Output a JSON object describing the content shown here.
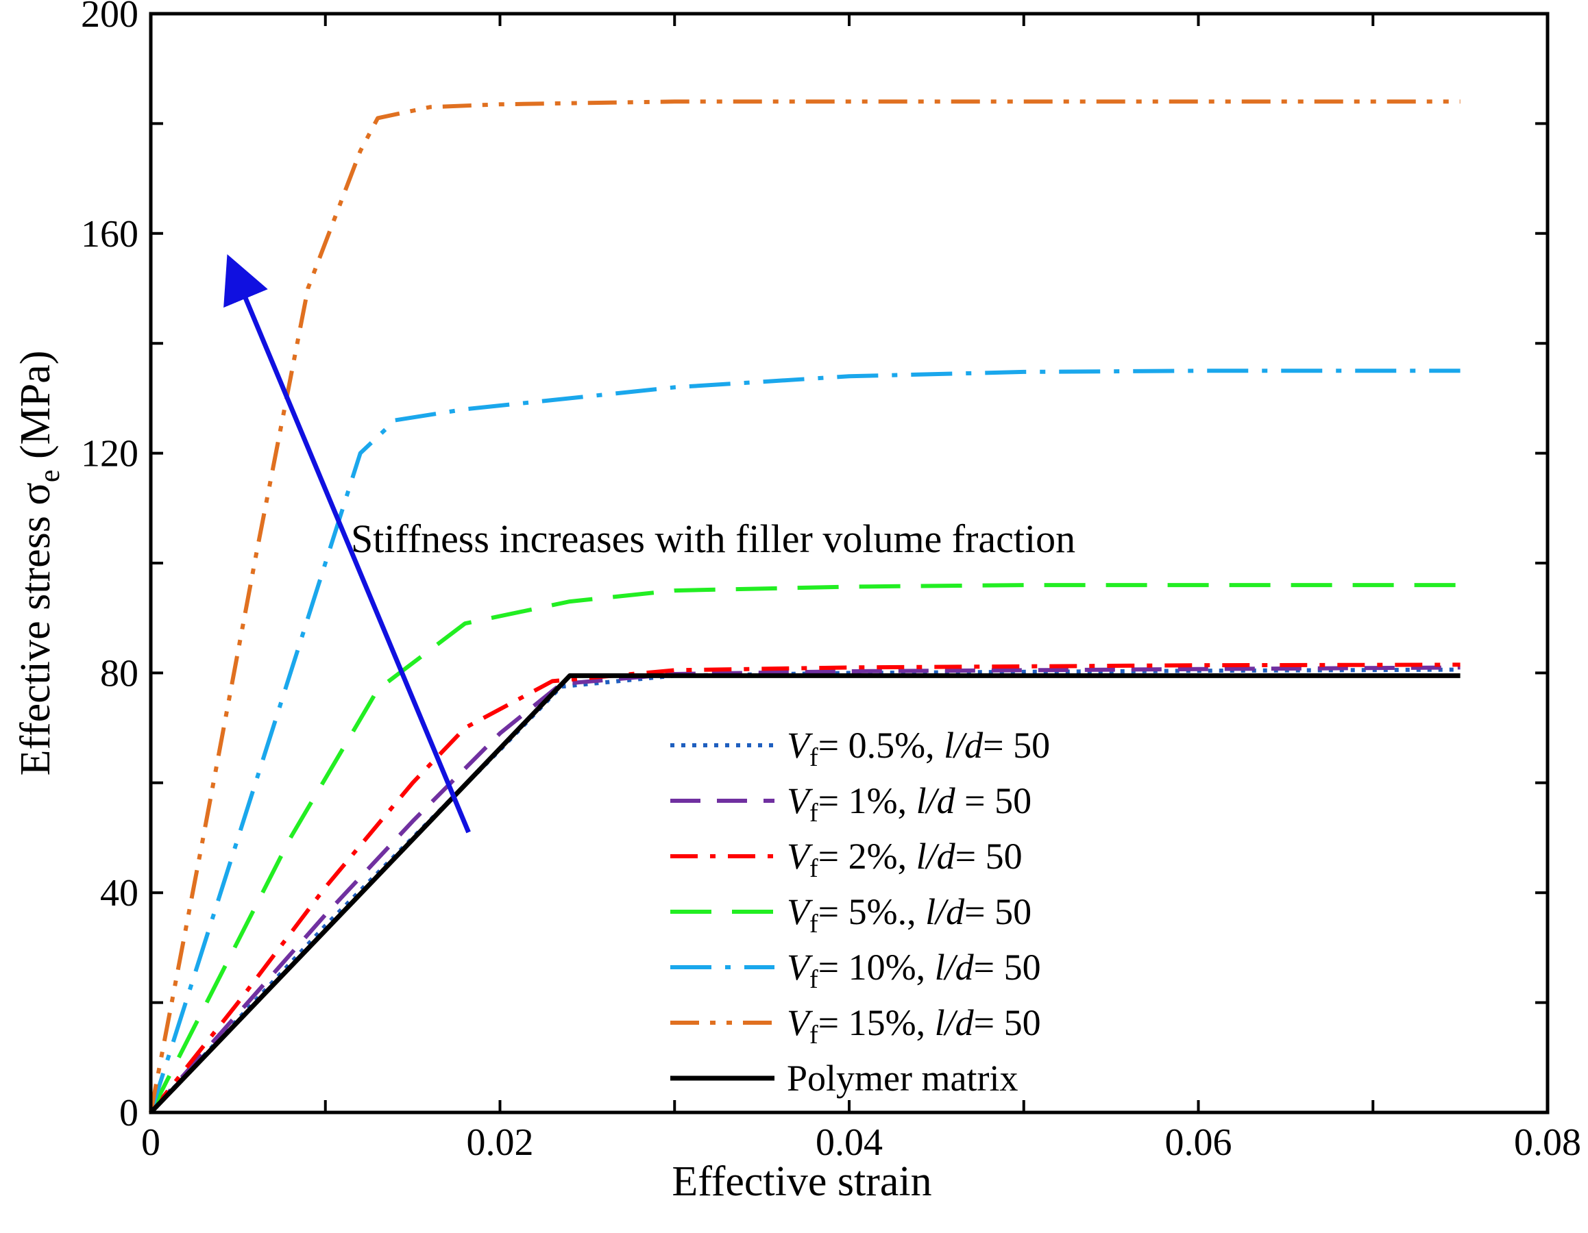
{
  "chart_data": {
    "type": "line",
    "title": "",
    "xlabel": "Effective strain",
    "ylabel_main": "Effective stress σ",
    "ylabel_sub": "e",
    "ylabel_unit": " (MPa)",
    "xlim": [
      0,
      0.08
    ],
    "ylim": [
      0,
      200
    ],
    "xticks": [
      0,
      0.02,
      0.04,
      0.06,
      0.08
    ],
    "xtick_labels": [
      "0",
      "0.02",
      "0.04",
      "0.06",
      "0.08"
    ],
    "yticks": [
      0,
      40,
      80,
      120,
      160,
      200
    ],
    "ytick_labels": [
      "0",
      "40",
      "80",
      "120",
      "160",
      "200"
    ],
    "grid": false,
    "legend_position": "lower-right",
    "annotation": {
      "text": "Stiffness increases with filler volume fraction",
      "arrow_from": [
        0.0182,
        51
      ],
      "arrow_to": [
        0.0048,
        153
      ],
      "color": "#1010e0"
    },
    "series": [
      {
        "name": "Vf= 0.5%, l/d= 50",
        "vf": "0.5%",
        "ld_label": "l/d",
        "ld_sep": "= ",
        "ld_value": "50",
        "color": "#1f5fbf",
        "dash": "dotted",
        "x": [
          0,
          0.005,
          0.01,
          0.015,
          0.02,
          0.0235,
          0.03,
          0.04,
          0.05,
          0.06,
          0.075
        ],
        "y": [
          0,
          17,
          34,
          50,
          66,
          77.5,
          79.5,
          80.0,
          80.2,
          80.4,
          80.6
        ]
      },
      {
        "name": "Vf= 1%, l/d = 50",
        "vf": "1%",
        "ld_label": "l/d",
        "ld_sep": " = ",
        "ld_value": "50",
        "color": "#7030a0",
        "dash": "dashed",
        "x": [
          0,
          0.005,
          0.01,
          0.015,
          0.02,
          0.0235,
          0.03,
          0.04,
          0.05,
          0.06,
          0.075
        ],
        "y": [
          0,
          18,
          36,
          53,
          69,
          78,
          79.8,
          80.3,
          80.5,
          80.7,
          81
        ]
      },
      {
        "name": "Vf= 2%, l/d= 50",
        "vf": "2%",
        "ld_label": "l/d",
        "ld_sep": "= ",
        "ld_value": "50",
        "color": "#ff0000",
        "dash": "dashdot",
        "x": [
          0,
          0.005,
          0.01,
          0.015,
          0.018,
          0.023,
          0.03,
          0.04,
          0.05,
          0.06,
          0.075
        ],
        "y": [
          0,
          20,
          41,
          60,
          70,
          78.5,
          80.5,
          81,
          81.2,
          81.4,
          81.5
        ]
      },
      {
        "name": "Vf= 5%. l/d= 50",
        "vf": "5%.",
        "ld_label": "l/d",
        "ld_sep": "= ",
        "ld_value": "50",
        "color": "#22ee22",
        "dash": "longdash",
        "x": [
          0,
          0.004,
          0.008,
          0.013,
          0.018,
          0.024,
          0.03,
          0.04,
          0.05,
          0.06,
          0.075
        ],
        "y": [
          0,
          25,
          50,
          77,
          89,
          93,
          95,
          95.7,
          96,
          96,
          96
        ]
      },
      {
        "name": "Vf= 10%, l/d= 50",
        "vf": "10%",
        "ld_label": "l/d",
        "ld_sep": "= ",
        "ld_value": "50",
        "color": "#1aa7ec",
        "dash": "longdashdot",
        "x": [
          0,
          0.004,
          0.008,
          0.012,
          0.014,
          0.018,
          0.024,
          0.03,
          0.04,
          0.05,
          0.06,
          0.075
        ],
        "y": [
          0,
          40,
          80,
          120,
          126,
          128,
          130,
          132,
          134,
          134.8,
          135,
          135
        ]
      },
      {
        "name": "Vf= 15%, l/d= 50",
        "vf": "15%",
        "ld_label": "l/d",
        "ld_sep": "= ",
        "ld_value": "50",
        "color": "#e07020",
        "dash": "dashdotdot",
        "x": [
          0,
          0.003,
          0.006,
          0.009,
          0.012,
          0.013,
          0.016,
          0.02,
          0.03,
          0.04,
          0.05,
          0.06,
          0.075
        ],
        "y": [
          0,
          50,
          101,
          150,
          175,
          181,
          183,
          183.5,
          184,
          184,
          184,
          184,
          184
        ]
      },
      {
        "name": "Polymer matrix",
        "vf": "",
        "ld_label": "",
        "ld_sep": "",
        "ld_value": "",
        "color": "#000000",
        "dash": "solid",
        "x": [
          0,
          0.024,
          0.075
        ],
        "y": [
          0,
          79.5,
          79.5
        ]
      }
    ]
  }
}
